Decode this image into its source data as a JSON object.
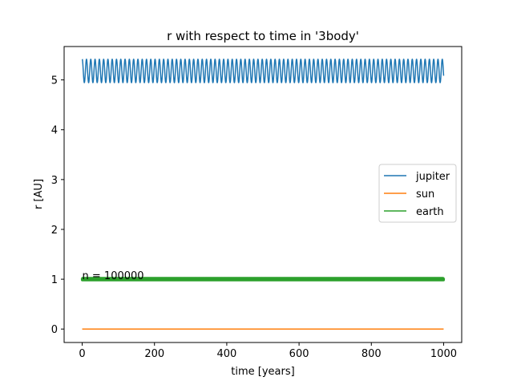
{
  "chart_data": {
    "type": "line",
    "title": "r with respect to time in '3body'",
    "xlabel": "time [years]",
    "ylabel": "r [AU]",
    "xlim": [
      -50,
      1050
    ],
    "ylim": [
      -0.27,
      5.67
    ],
    "xticks": [
      0,
      200,
      400,
      600,
      800,
      1000
    ],
    "yticks": [
      0,
      1,
      2,
      3,
      4,
      5
    ],
    "grid": false,
    "legend_position": "center-right",
    "annotation": {
      "text": "n = 100000",
      "x": 0,
      "y": 1.0
    },
    "series": [
      {
        "name": "jupiter",
        "color": "#1f77b4",
        "x_range": [
          0,
          1000
        ],
        "mean": 5.18,
        "amplitude": 0.235,
        "period_years": 11.86
      },
      {
        "name": "sun",
        "color": "#ff7f0e",
        "x_range": [
          0,
          1000
        ],
        "mean": 0.0,
        "amplitude": 0.0,
        "period_years": 0
      },
      {
        "name": "earth",
        "color": "#2ca02c",
        "x_range": [
          0,
          1000
        ],
        "mean": 1.0,
        "amplitude": 0.017,
        "period_years": 1.0
      }
    ]
  }
}
